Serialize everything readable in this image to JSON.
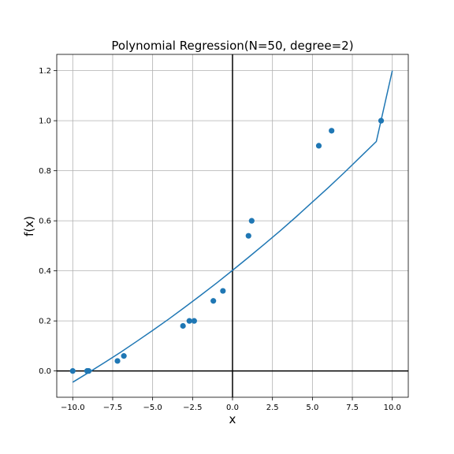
{
  "chart_data": {
    "type": "scatter",
    "title": "Polynomial Regression(N=50, degree=2)",
    "xlabel": "x",
    "ylabel": "f(x)",
    "xlim": [
      -11.0,
      11.0
    ],
    "ylim": [
      -0.105,
      1.265
    ],
    "grid": true,
    "x_ticks": [
      -10.0,
      -7.5,
      -5.0,
      -2.5,
      0.0,
      2.5,
      5.0,
      7.5,
      10.0
    ],
    "x_tick_labels": [
      "−10.0",
      "−7.5",
      "−5.0",
      "−2.5",
      "0.0",
      "2.5",
      "5.0",
      "7.5",
      "10.0"
    ],
    "y_ticks": [
      0.0,
      0.2,
      0.4,
      0.6,
      0.8,
      1.0,
      1.2
    ],
    "y_tick_labels": [
      "0.0",
      "0.2",
      "0.4",
      "0.6",
      "0.8",
      "1.0",
      "1.2"
    ],
    "colors": {
      "series": "#1f77b4"
    },
    "series": [
      {
        "kind": "scatter",
        "x": [
          -10.0,
          -9.1,
          -9.0,
          -7.2,
          -6.8,
          -3.1,
          -2.7,
          -2.4,
          -1.2,
          -0.6,
          1.0,
          1.2,
          5.4,
          6.2,
          9.3
        ],
        "y": [
          0.0,
          0.0,
          0.0,
          0.04,
          0.06,
          0.18,
          0.2,
          0.2,
          0.28,
          0.32,
          0.54,
          0.6,
          0.9,
          0.96,
          1.0
        ]
      },
      {
        "kind": "line",
        "x": [
          -10.0,
          -9.0,
          -8.0,
          -7.0,
          -6.0,
          -5.0,
          -4.0,
          -3.0,
          -2.0,
          -1.0,
          0.0,
          1.0,
          2.0,
          3.0,
          4.0,
          5.0,
          6.0,
          7.0,
          8.0,
          9.0,
          10.0
        ],
        "y": [
          -0.045,
          -0.006,
          0.034,
          0.075,
          0.118,
          0.162,
          0.207,
          0.254,
          0.302,
          0.351,
          0.402,
          0.454,
          0.507,
          0.561,
          0.617,
          0.675,
          0.733,
          0.793,
          0.855,
          0.917,
          1.2
        ]
      }
    ]
  }
}
